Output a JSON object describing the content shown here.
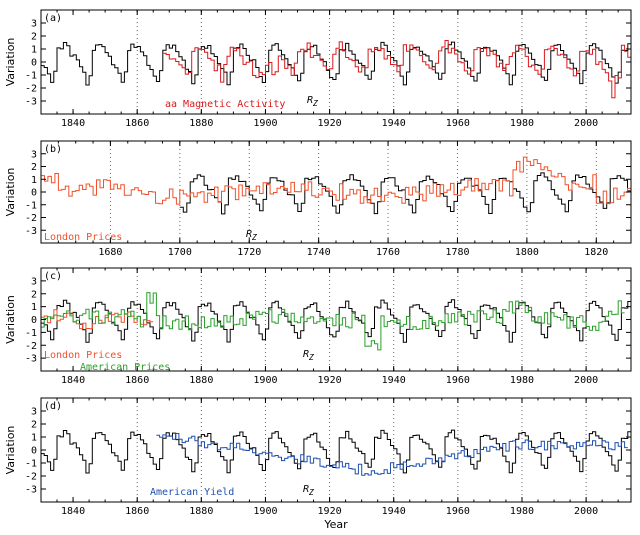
{
  "figure": {
    "xlabel": "Year",
    "ylabel": "Variation"
  },
  "colors": {
    "rz": "#000000",
    "aa": "#d8191c",
    "london": "#f0502a",
    "american_prices": "#2aa02a",
    "american_yield": "#1f4fb0"
  },
  "chart_data": [
    {
      "type": "line",
      "panel_label": "(a)",
      "xlim": [
        1830,
        2014
      ],
      "ylim": [
        -4,
        4
      ],
      "xticks": [
        1840,
        1860,
        1880,
        1900,
        1920,
        1940,
        1960,
        1980,
        2000
      ],
      "yticks": [
        -3,
        -2,
        -1,
        0,
        1,
        2,
        3
      ],
      "grid_x": [
        1860,
        1880,
        1900,
        1920,
        1940,
        1960,
        1980,
        2000
      ],
      "annotations": [
        {
          "text": "aa Magnetic Activity",
          "color": "aa"
        },
        {
          "text": "R",
          "sub": "Z",
          "color": "rz"
        }
      ],
      "series": [
        {
          "name": "R_Z",
          "color": "rz",
          "x_start": 1830,
          "x_end": 2014,
          "generator": "rz"
        },
        {
          "name": "aa Magnetic Activity",
          "color": "aa",
          "x_start": 1868,
          "x_end": 2014,
          "generator": "aa"
        }
      ]
    },
    {
      "type": "line",
      "panel_label": "(b)",
      "xlim": [
        1660,
        1830
      ],
      "ylim": [
        -4,
        4
      ],
      "xticks": [
        1680,
        1700,
        1720,
        1740,
        1760,
        1780,
        1800,
        1820
      ],
      "yticks": [
        -3,
        -2,
        -1,
        0,
        1,
        2,
        3
      ],
      "grid_x": [
        1680,
        1700,
        1720,
        1740,
        1760,
        1780,
        1800,
        1820
      ],
      "annotations": [
        {
          "text": "London Prices",
          "color": "london"
        },
        {
          "text": "R",
          "sub": "Z",
          "color": "rz"
        }
      ],
      "series": [
        {
          "name": "R_Z",
          "color": "rz",
          "x_start": 1700,
          "x_end": 1830,
          "generator": "rz"
        },
        {
          "name": "London Prices",
          "color": "london",
          "x_start": 1660,
          "x_end": 1830,
          "generator": "london_early"
        }
      ]
    },
    {
      "type": "line",
      "panel_label": "(c)",
      "xlim": [
        1830,
        2014
      ],
      "ylim": [
        -4,
        4
      ],
      "xticks": [
        1840,
        1860,
        1880,
        1900,
        1920,
        1940,
        1960,
        1980,
        2000
      ],
      "yticks": [
        -3,
        -2,
        -1,
        0,
        1,
        2,
        3
      ],
      "grid_x": [
        1860,
        1880,
        1900,
        1920,
        1940,
        1960,
        1980,
        2000
      ],
      "annotations": [
        {
          "text": "London Prices",
          "color": "london"
        },
        {
          "text": "American Prices",
          "color": "american_prices"
        },
        {
          "text": "R",
          "sub": "Z",
          "color": "rz"
        }
      ],
      "series": [
        {
          "name": "R_Z",
          "color": "rz",
          "x_start": 1830,
          "x_end": 2014,
          "generator": "rz"
        },
        {
          "name": "London Prices",
          "color": "london",
          "x_start": 1830,
          "x_end": 1865,
          "generator": "london_late"
        },
        {
          "name": "American Prices",
          "color": "american_prices",
          "x_start": 1830,
          "x_end": 2012,
          "generator": "american_prices"
        }
      ]
    },
    {
      "type": "line",
      "panel_label": "(d)",
      "xlim": [
        1830,
        2014
      ],
      "ylim": [
        -4,
        4
      ],
      "xticks": [
        1840,
        1860,
        1880,
        1900,
        1920,
        1940,
        1960,
        1980,
        2000
      ],
      "yticks": [
        -3,
        -2,
        -1,
        0,
        1,
        2,
        3
      ],
      "grid_x": [
        1860,
        1880,
        1900,
        1920,
        1940,
        1960,
        1980,
        2000
      ],
      "annotations": [
        {
          "text": "American Yield",
          "color": "american_yield"
        },
        {
          "text": "R",
          "sub": "Z",
          "color": "rz"
        }
      ],
      "series": [
        {
          "name": "R_Z",
          "color": "rz",
          "x_start": 1830,
          "x_end": 2014,
          "generator": "rz"
        },
        {
          "name": "American Yield",
          "color": "american_yield",
          "x_start": 1866,
          "x_end": 2013,
          "generator": "american_yield"
        }
      ]
    }
  ]
}
